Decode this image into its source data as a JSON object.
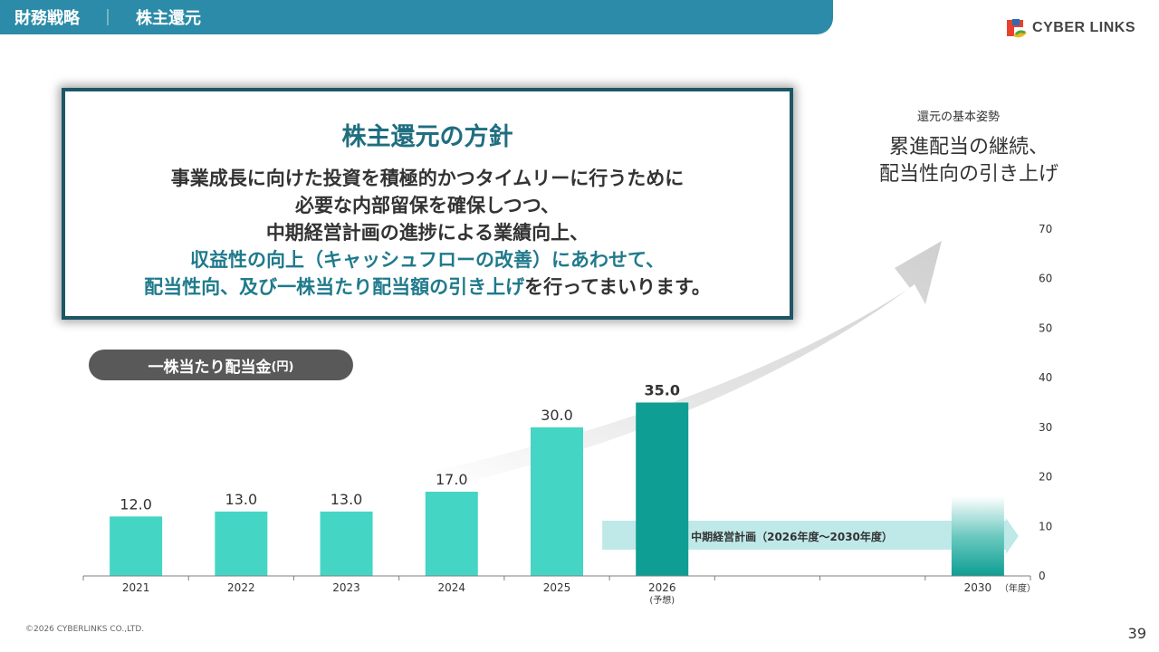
{
  "header": {
    "section": "財務戦略",
    "separator": "｜",
    "page": "株主還元"
  },
  "logo": {
    "text": "CYBER LINKS"
  },
  "policy": {
    "title": "株主還元の方針",
    "lines": [
      "事業成長に向けた投資を積極的かつタイムリーに行うために",
      "必要な内部留保を確保しつつ、",
      "中期経営計画の進捗による業績向上、"
    ],
    "highlight_line": "収益性の向上（キャッシュフローの改善）にあわせて、",
    "last_line_highlight": "配当性向、及び一株当たり配当額の引き上げ",
    "last_line_rest": "を行ってまいります。"
  },
  "stance": {
    "label": "還元の基本姿勢",
    "text_line1": "累進配当の継続、",
    "text_line2": "配当性向の引き上げ"
  },
  "pill": {
    "label": "一株当たり配当金",
    "unit": "(円)"
  },
  "chart_data": {
    "type": "bar",
    "title": "一株当たり配当金（円）",
    "categories": [
      "2021",
      "2022",
      "2023",
      "2024",
      "2025",
      "2026",
      "",
      "",
      "2030"
    ],
    "category_sub_labels": [
      "",
      "",
      "",
      "",
      "",
      "(予想)",
      "",
      "",
      ""
    ],
    "year_unit_label": "（年度）",
    "values": [
      12.0,
      13.0,
      13.0,
      17.0,
      30.0,
      35.0,
      null,
      null,
      null
    ],
    "value_labels": [
      "12.0",
      "13.0",
      "13.0",
      "17.0",
      "30.0",
      "35.0",
      "",
      "",
      ""
    ],
    "forecast_index": 5,
    "target_index": 8,
    "ylim": [
      0,
      70
    ],
    "yticks": [
      0,
      10,
      20,
      30,
      40,
      50,
      60,
      70
    ],
    "y_axis_side": "right",
    "plan_arrow_label": "中期経営計画（2026年度～2030年度）",
    "colors": {
      "bar": "#45d5c5",
      "forecast": "#0e9e93",
      "plan_arrow": "#bfe9e8",
      "axis": "#7f7f7f",
      "trend_arrow": "#d9d9d9"
    }
  },
  "footer": {
    "copyright": "©2026 CYBERLINKS CO.,LTD.",
    "page_number": "39"
  }
}
